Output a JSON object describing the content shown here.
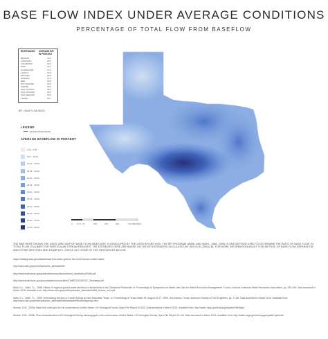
{
  "title": "BASE FLOW INDEX UNDER AVERAGE CONDITIONS",
  "subtitle": "PERCENTAGE OF TOTAL FLOW FROM BASEFLOW",
  "basin_table": {
    "col_basin": "RIVER BASIN",
    "col_bfi": "AVERAGE BFI IN PERCENT",
    "rows": [
      {
        "basin": "BRAZOS",
        "bfi": "15.1"
      },
      {
        "basin": "CANADIAN",
        "bfi": "25.1"
      },
      {
        "basin": "COLORADO",
        "bfi": "19.3"
      },
      {
        "basin": "PRIO",
        "bfi": "16.7"
      },
      {
        "basin": "GUADALUPE",
        "bfi": "27.4"
      },
      {
        "basin": "LAVACA",
        "bfi": "16.5"
      },
      {
        "basin": "NECHES",
        "bfi": "26.9"
      },
      {
        "basin": "NUECES",
        "bfi": "17.5"
      },
      {
        "basin": "RED",
        "bfi": "16.8"
      },
      {
        "basin": "RIO GRANDE",
        "bfi": "19.3"
      },
      {
        "basin": "SABINE",
        "bfi": "15.6"
      },
      {
        "basin": "SAN JACINTO",
        "bfi": "16.4"
      },
      {
        "basin": "SAN ANTONIO",
        "bfi": "25.0"
      },
      {
        "basin": "SAN MARCOS",
        "bfi": "16.9"
      },
      {
        "basin": "TRINITY",
        "bfi": "16.7"
      }
    ]
  },
  "bfi_note": "BFI = BASE FLOW INDEX",
  "legend": {
    "title": "LEGEND",
    "basin_label": "MAJOR RIVER BASIN",
    "baseflow_title": "AVERAGE BASEFLOW IN PERCENT",
    "classes": [
      {
        "label": "1.00 - 5.00",
        "color": "#e6eef9"
      },
      {
        "label": "5.01 - 10.00",
        "color": "#cfdff4"
      },
      {
        "label": "10.01 - 15.00",
        "color": "#b8cfef"
      },
      {
        "label": "15.01 - 20.00",
        "color": "#a2bfea"
      },
      {
        "label": "20.01 - 25.00",
        "color": "#8caee4"
      },
      {
        "label": "25.01 - 30.00",
        "color": "#779ddd"
      },
      {
        "label": "30.01 - 35.00",
        "color": "#628bd5"
      },
      {
        "label": "35.01 - 40.00",
        "color": "#4f77ca"
      },
      {
        "label": "40.01 - 50.00",
        "color": "#3f63bb"
      },
      {
        "label": "50.01 - 60.00",
        "color": "#3550a8"
      },
      {
        "label": "60.01 - 70.00",
        "color": "#2e3f92"
      },
      {
        "label": "70.01 - 80.00",
        "color": "#28307a"
      }
    ]
  },
  "scale": {
    "labels": [
      "0",
      "37.5",
      "75",
      "150",
      "225",
      "300"
    ],
    "unit": "KILOMETERS"
  },
  "description": "THE MAP HERE SHOWS THE USGS GRID MAP OF BASE FLOW INDEX (BFI) % DEVELOPED BY THE USGS BFI METHOD. THE BFI PROGRAM (WAHL AND WAHL, 1988, 1995) IS ONE METHOD USED TO DETERMINE THE RATIO OF BASE FLOW TO TOTAL FLOW VOLUMES FOR PARTICULAR STREAM REACHES. THE ESTIMATES HERE ARE BASED ON THE BFI ESTIMATES CALCULATED BY WOLOCK (2003A,B). FOR MORE INFORMATION ABOUT THIS METHOD OF BASE FLOW SEPARATION AND OTHER METHODS AND EXAMPLES, CHECK OUT SOME OF THE RESOURCES BELOW.",
  "references": [
    "https://catalog.data.gov/dataset/base-flow-index-grid-for-the-conterminous-united-states",
    "http://www.usbr.gov/pmts/hydraulics_lab/twahl/bfi/",
    "http://www.twdb.texas.gov/publications/reports/numbered_reports/doc/R356.pdf",
    "http://www.twdb.texas.gov/groundwater/docs/studies/TWBPS2015/Pt2/C_Recharge.pdf",
    "Wahl, K.L., Wahl, T.L., 1988. Effects of regional ground-water declines on streamflows in the Oklahoma Panhandle. In: Proceedings of Symposium on Water-Use Data for Water Resources Management. Tucson, Arizona. American Water Resources Association, pp. 239-249. Data accessed in March 2015. Available from: http://www.usbr.gov/pmts/hydraulics_lab/twahl/bfi/bfi_beaver_river.pdf",
    "Wahl, K.L., Wahl, T.L., 1995. Determining the flow of Comal Springs at New Braunfels, Texas. In: Proceedings of Texas Water 95, August 16-17, 1995, San Antonio, Texas. American Society of Civil Engineers, pp. 77-86. Data accessed in March 2015. Available from: http://www.usbr.gov/pmts/hydraulics_lab/twahl/bfi/texaswater95/comalsprings.html",
    "Wolock, D.M., 2003a. Base-flow index grid for the conterminous United States: US Geological Survey Open-File Report 03-263. Data accessed in March 2015. Available from: http://water.usgs.gov/lookup/getspatial?bfi48grd",
    "Wolock, D.M., 2003b. Flow characteristics at US Geological Survey streamgages in the conterminous United States: US Geological Survey Open-File Report 03-146. Data accessed in March 2015. Available from: http://water.usgs.gov/lookup/getspatial?qsitesdd"
  ]
}
